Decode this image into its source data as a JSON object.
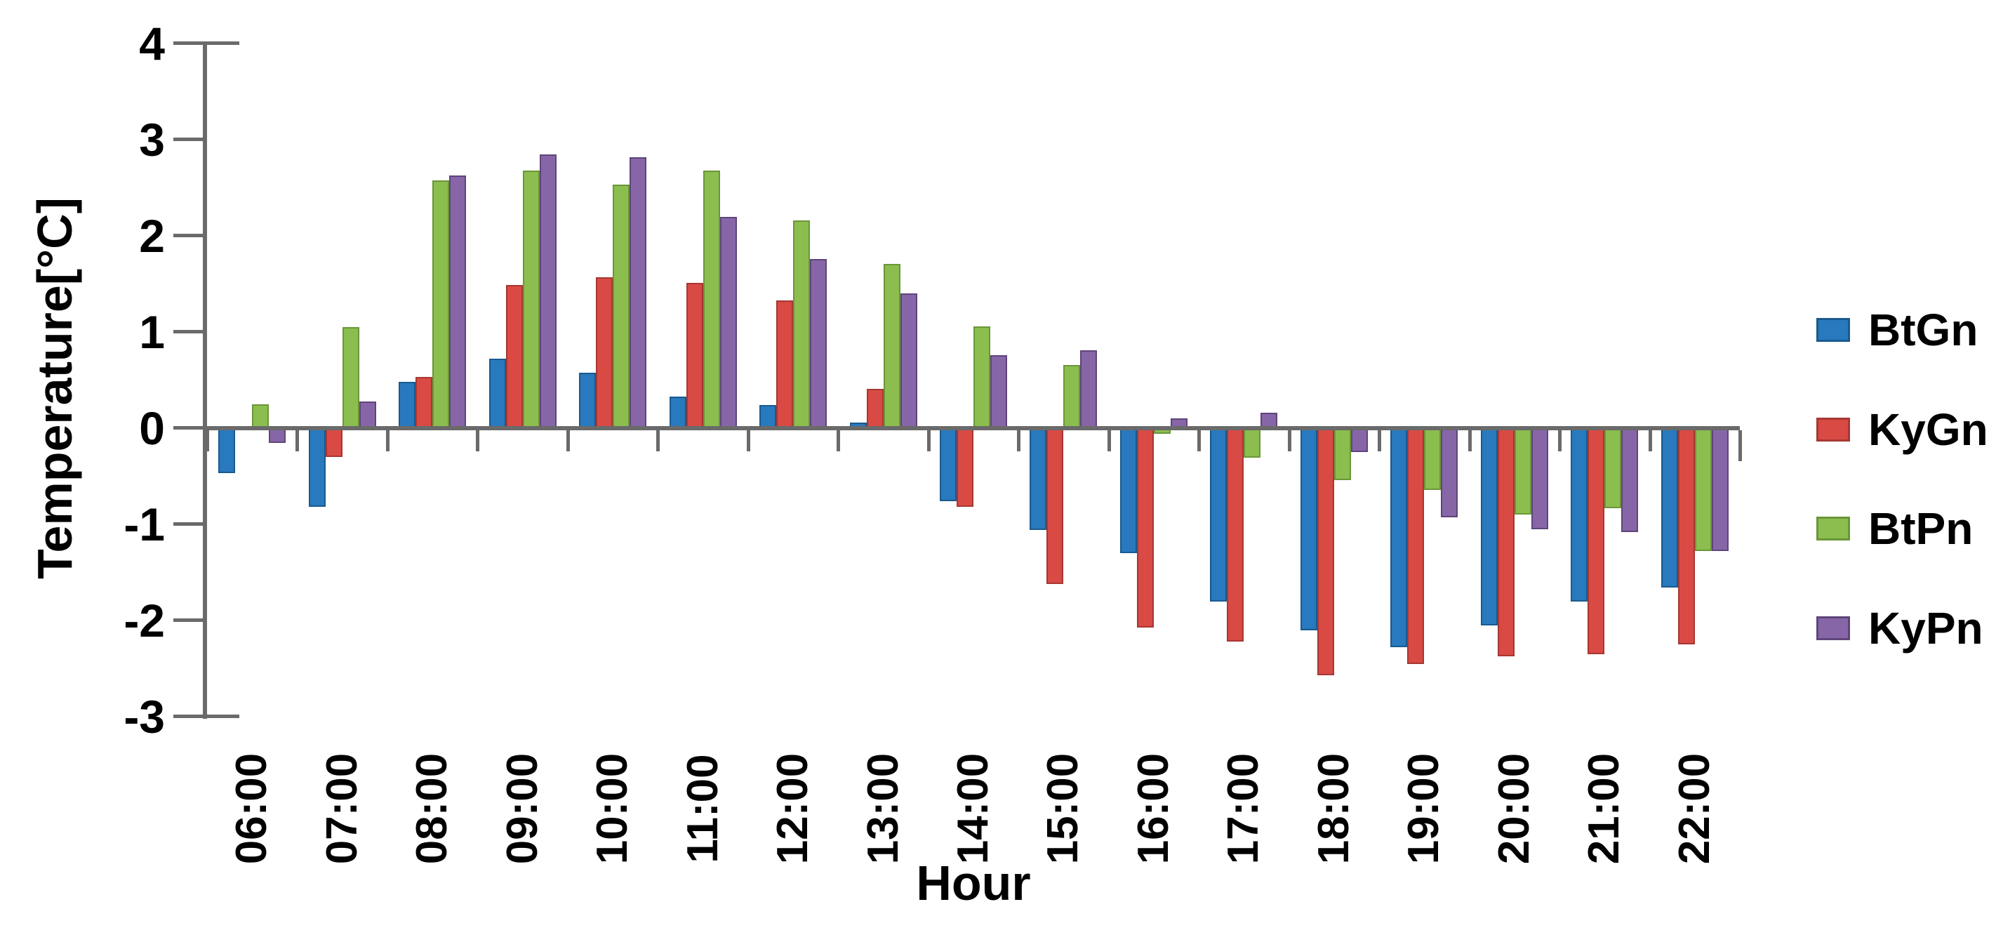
{
  "background": "#ffffff",
  "axis": {
    "color": "#6a6a6a",
    "text_color": "#000000"
  },
  "chart_data": {
    "type": "bar",
    "title": "",
    "xlabel": "Hour",
    "ylabel": "Temperature[°C]",
    "ylim": [
      -3,
      4
    ],
    "yticks": [
      4,
      3,
      2,
      1,
      0,
      -1,
      -2,
      -3
    ],
    "grid": false,
    "legend_position": "right",
    "categories": [
      "06:00",
      "07:00",
      "08:00",
      "09:00",
      "10:00",
      "11:00",
      "12:00",
      "13:00",
      "14:00",
      "15:00",
      "16:00",
      "17:00",
      "18:00",
      "19:00",
      "20:00",
      "21:00",
      "22:00"
    ],
    "series": [
      {
        "name": "BtGn",
        "color": "#2879BD",
        "border_color": "#1A5A8F",
        "values": [
          -0.47,
          -0.82,
          0.48,
          0.72,
          0.58,
          0.33,
          0.24,
          0.06,
          -0.76,
          -1.06,
          -1.3,
          -1.8,
          -2.1,
          -2.28,
          -2.05,
          -1.8,
          -1.66
        ]
      },
      {
        "name": "KyGn",
        "color": "#D94A45",
        "border_color": "#A63732",
        "values": [
          0,
          -0.3,
          0.53,
          1.49,
          1.57,
          1.51,
          1.33,
          0.41,
          -0.82,
          -1.62,
          -2.07,
          -2.22,
          -2.57,
          -2.45,
          -2.37,
          -2.35,
          -2.25
        ]
      },
      {
        "name": "BtPn",
        "color": "#8BBE4E",
        "border_color": "#6B9638",
        "values": [
          0.25,
          1.05,
          2.58,
          2.68,
          2.53,
          2.68,
          2.16,
          1.71,
          1.06,
          0.66,
          -0.06,
          -0.31,
          -0.54,
          -0.64,
          -0.9,
          -0.83,
          -1.28
        ]
      },
      {
        "name": "KyPn",
        "color": "#8766A8",
        "border_color": "#5E4579",
        "values": [
          -0.15,
          0.28,
          2.63,
          2.85,
          2.82,
          2.2,
          1.76,
          1.4,
          0.76,
          0.81,
          0.1,
          0.16,
          -0.25,
          -0.93,
          -1.05,
          -1.08,
          -1.28
        ]
      }
    ]
  }
}
